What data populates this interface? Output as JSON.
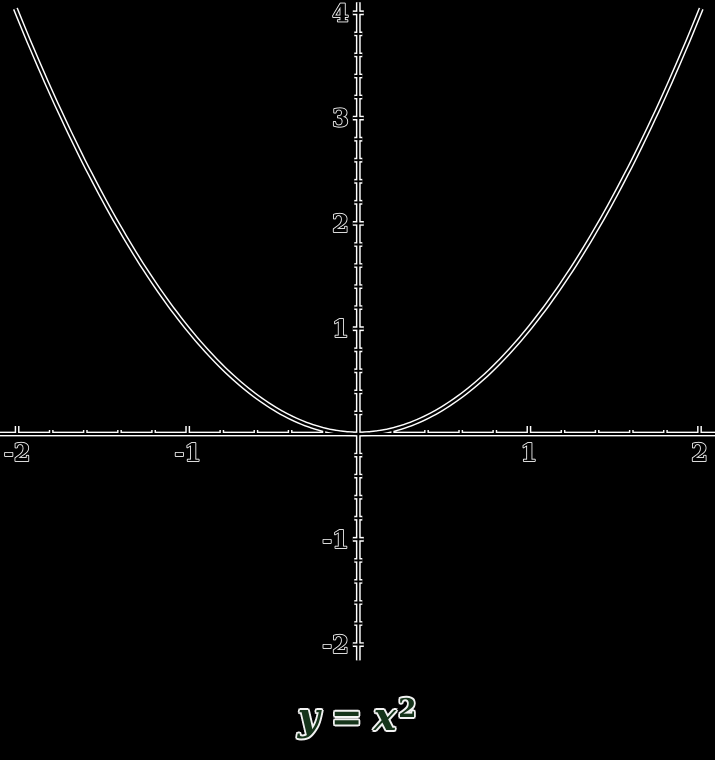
{
  "chart_data": {
    "type": "line",
    "title": "y = x^2",
    "title_parts": {
      "lhs": "y",
      "eq": "=",
      "base": "x",
      "exponent": "2"
    },
    "function": "y = x^2",
    "x_range": [
      -2.01,
      2.01
    ],
    "sample_step": 0.02,
    "key_points": [
      [
        -2,
        4
      ],
      [
        -1,
        1
      ],
      [
        0,
        0
      ],
      [
        1,
        1
      ],
      [
        2,
        4
      ]
    ],
    "axes": {
      "x": {
        "min": -2.1,
        "max": 2.09,
        "tick_step": 0.2,
        "major_every": 1,
        "tick_labels": [
          {
            "value": -2,
            "label": "-2"
          },
          {
            "value": -1,
            "label": "-1"
          },
          {
            "value": 1,
            "label": "1"
          },
          {
            "value": 2,
            "label": "2"
          }
        ]
      },
      "y": {
        "min": -2.15,
        "max": 4.1,
        "tick_step": 0.2,
        "major_every": 1,
        "tick_labels": [
          {
            "value": -2,
            "label": "-2"
          },
          {
            "value": -1,
            "label": "-1"
          },
          {
            "value": 1,
            "label": "1"
          },
          {
            "value": 2,
            "label": "2"
          },
          {
            "value": 3,
            "label": "3"
          },
          {
            "value": 4,
            "label": "4"
          }
        ]
      }
    },
    "grid": false,
    "legend": false,
    "colors": {
      "background": "#000000",
      "stroke_outline": "#ffffff",
      "stroke_core": "#000000",
      "label_fill": "#000000",
      "label_outline": "#f5f5f5",
      "title_fill": "#15341a"
    }
  }
}
